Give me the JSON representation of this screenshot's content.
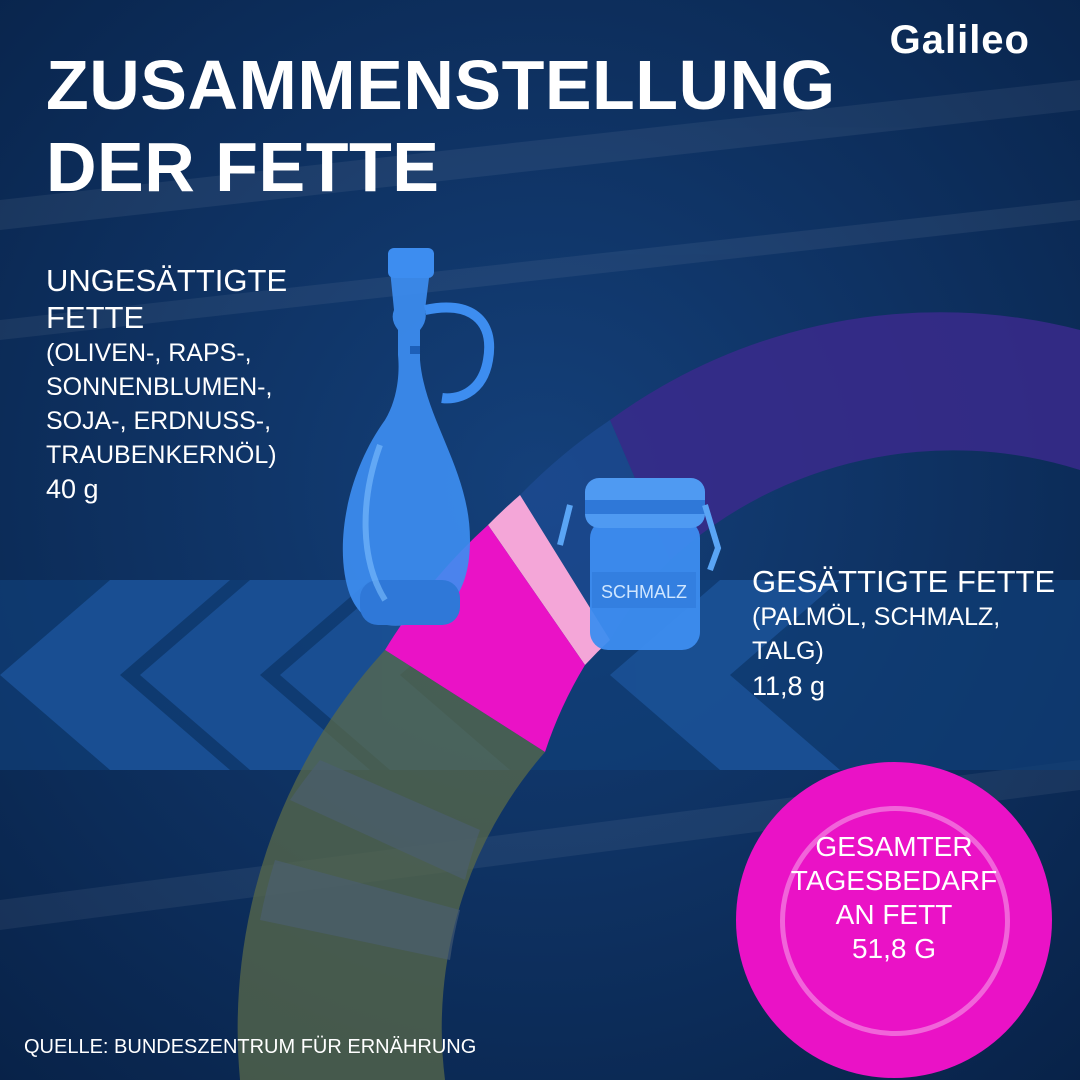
{
  "brand": {
    "logo": "Galileo"
  },
  "title": {
    "line1": "ZUSAMMENSTELLUNG",
    "line2": "DER FETTE"
  },
  "unsaturated": {
    "heading_line1": "UNGESÄTTIGTE",
    "heading_line2": "FETTE",
    "examples": [
      "(OLIVEN-, RAPS-,",
      "SONNENBLUMEN-,",
      "SOJA-, ERDNUSS-,",
      "TRAUBENKERNÖL)"
    ],
    "amount": "40 g",
    "icon": "oil-bottle-icon"
  },
  "saturated": {
    "heading": "GESÄTTIGTE FETTE",
    "examples": [
      "(PALMÖL, SCHMALZ,",
      "TALG)"
    ],
    "amount": "11,8 g",
    "icon": "lard-jar-icon",
    "jar_label": "SCHMALZ"
  },
  "total": {
    "lines": [
      "GESAMTER",
      "TAGESBEDARF",
      "AN FETT"
    ],
    "amount": "51,8 g"
  },
  "source": "QUELLE: BUNDESZENTRUM FÜR ERNÄHRUNG",
  "colors": {
    "background": "#0a2a55",
    "accent_magenta": "#ea12c6",
    "accent_pink": "#f4a6d8",
    "bottle_blue": "#3d8df0",
    "arc_violet": "#3a2a8c",
    "arc_olive": "#5a6a4a"
  }
}
